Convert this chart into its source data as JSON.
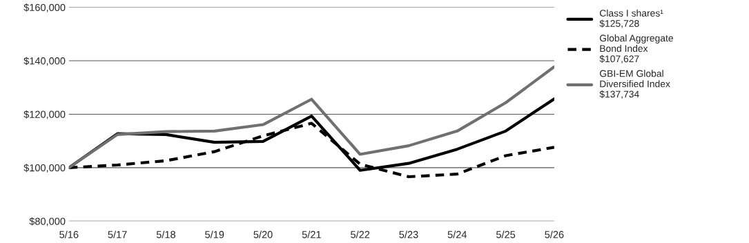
{
  "chart_data": {
    "type": "line",
    "categories": [
      "5/16",
      "5/17",
      "5/18",
      "5/19",
      "5/20",
      "5/21",
      "5/22",
      "5/23",
      "5/24",
      "5/25",
      "5/26"
    ],
    "series": [
      {
        "name": "Class I shares¹\n$125,728",
        "color": "#000000",
        "line_style": "solid",
        "values": [
          100000,
          112700,
          112400,
          109500,
          109800,
          119300,
          99000,
          101600,
          106900,
          113700,
          125728
        ]
      },
      {
        "name": "Global Aggregate\nBond Index\n$107,627",
        "color": "#000000",
        "line_style": "dashed",
        "values": [
          100000,
          101000,
          102600,
          106000,
          111900,
          116600,
          101300,
          96600,
          97600,
          104500,
          107627
        ]
      },
      {
        "name": "GBI-EM Global\nDiversified Index\n$137,734",
        "color": "#707070",
        "line_style": "solid",
        "values": [
          100000,
          112400,
          113500,
          113700,
          116100,
          125600,
          105000,
          108200,
          113700,
          124300,
          137734
        ]
      }
    ],
    "ylim": [
      80000,
      160000
    ],
    "yticks": [
      {
        "value": 80000,
        "label": "$80,000"
      },
      {
        "value": 100000,
        "label": "$100,000"
      },
      {
        "value": 120000,
        "label": "$120,000"
      },
      {
        "value": 140000,
        "label": "$140,000"
      },
      {
        "value": 160000,
        "label": "$160,000"
      }
    ],
    "grid": "y",
    "legend": "right"
  }
}
